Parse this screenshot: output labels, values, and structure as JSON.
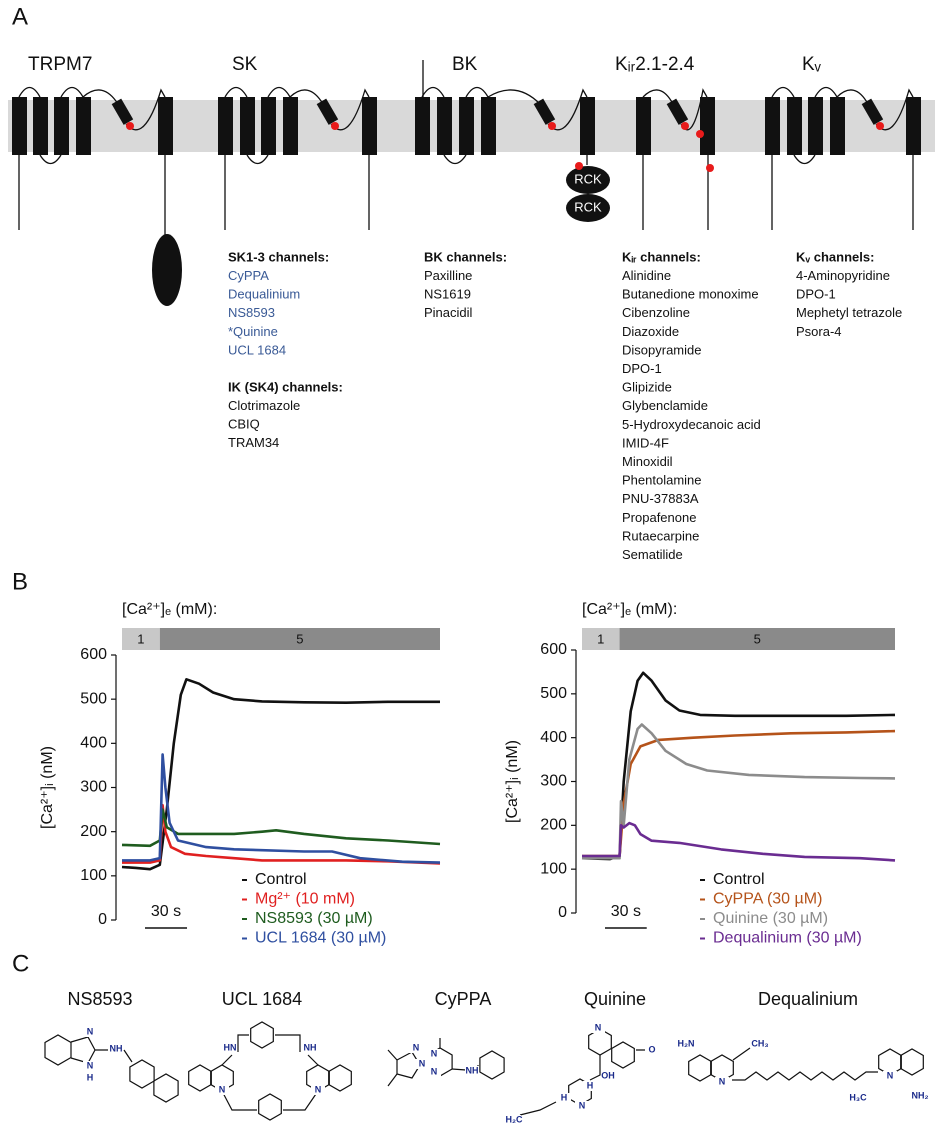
{
  "panel_labels": [
    "A",
    "B",
    "C"
  ],
  "panel_a": {
    "channels": [
      {
        "name": "TRPM7"
      },
      {
        "name": "SK"
      },
      {
        "name": "BK"
      },
      {
        "name": "Kᵢᵣ2.1-2.4"
      },
      {
        "name": "Kᵥ"
      }
    ],
    "domain_labels": [
      "RCK",
      "RCK"
    ],
    "groups": [
      {
        "heading": "SK1-3 channels:",
        "items": [
          "CyPPA",
          "Dequalinium",
          "NS8593",
          "*Quinine",
          "UCL 1684"
        ],
        "color": "#3a5a96"
      },
      {
        "heading": "IK (SK4) channels:",
        "items": [
          "Clotrimazole",
          "CBIQ",
          "TRAM34"
        ]
      },
      {
        "heading": "BK channels:",
        "items": [
          "Paxilline",
          "NS1619",
          "Pinacidil"
        ]
      },
      {
        "heading": "Kᵢᵣ channels:",
        "items": [
          "Alinidine",
          "Butanedione monoxime",
          "Cibenzoline",
          "Diazoxide",
          "Disopyramide",
          "DPO-1",
          "Glipizide",
          "Glybenclamide",
          "5-Hydroxydecanoic acid",
          "IMID-4F",
          "Minoxidil",
          "Phentolamine",
          "PNU-37883A",
          "Propafenone",
          "Rutaecarpine",
          "Sematilide"
        ]
      },
      {
        "heading": "Kᵥ channels:",
        "items": [
          "4-Aminopyridine",
          "DPO-1",
          "Mephetyl tetrazole",
          "Psora-4"
        ]
      }
    ]
  },
  "chart_data": [
    {
      "type": "line",
      "y_label": "[Ca²⁺]ᵢ (nM)",
      "condition_label": "[Ca²⁺]ₑ (mM):",
      "conditions": [
        {
          "value": 1,
          "start": 0,
          "end": 27
        },
        {
          "value": 5,
          "start": 27,
          "end": 227
        }
      ],
      "scale_bar": {
        "value": 30,
        "label": "30 s"
      },
      "xlim": [
        0,
        227
      ],
      "ylim": [
        0,
        600
      ],
      "yticks": [
        0,
        100,
        200,
        300,
        400,
        500,
        600
      ],
      "series": [
        {
          "name": "Control",
          "color": "#111111",
          "x": [
            0,
            10,
            20,
            27,
            32,
            37,
            42,
            46,
            55,
            65,
            80,
            100,
            130,
            160,
            190,
            220,
            227
          ],
          "values": [
            120,
            118,
            115,
            125,
            250,
            400,
            510,
            545,
            535,
            515,
            500,
            495,
            493,
            492,
            494,
            494,
            494
          ]
        },
        {
          "name": "Mg²⁺ (10 mM)",
          "color": "#e02020",
          "x": [
            0,
            20,
            27,
            29,
            31,
            35,
            45,
            60,
            80,
            100,
            130,
            160,
            190,
            227
          ],
          "values": [
            130,
            130,
            135,
            260,
            200,
            165,
            150,
            145,
            140,
            135,
            135,
            135,
            133,
            128
          ]
        },
        {
          "name": "NS8593 (30 µM)",
          "color": "#1f5c1f",
          "x": [
            0,
            20,
            27,
            29,
            32,
            40,
            60,
            80,
            100,
            110,
            130,
            160,
            190,
            227
          ],
          "values": [
            170,
            168,
            180,
            250,
            210,
            195,
            195,
            195,
            200,
            203,
            195,
            185,
            180,
            172
          ]
        },
        {
          "name": "UCL 1684 (30 µM)",
          "color": "#2f4fa0",
          "x": [
            0,
            20,
            27,
            29,
            31,
            34,
            40,
            60,
            80,
            100,
            130,
            150,
            170,
            200,
            227
          ],
          "values": [
            135,
            135,
            140,
            375,
            300,
            220,
            180,
            165,
            160,
            158,
            155,
            155,
            140,
            132,
            130
          ]
        }
      ]
    },
    {
      "type": "line",
      "y_label": "[Ca²⁺]ᵢ (nM)",
      "condition_label": "[Ca²⁺]ₑ (mM):",
      "conditions": [
        {
          "value": 1,
          "start": 0,
          "end": 27
        },
        {
          "value": 5,
          "start": 27,
          "end": 225
        }
      ],
      "scale_bar": {
        "value": 30,
        "label": "30 s"
      },
      "xlim": [
        0,
        225
      ],
      "ylim": [
        0,
        600
      ],
      "yticks": [
        0,
        100,
        200,
        300,
        400,
        500,
        600
      ],
      "series": [
        {
          "name": "Control",
          "color": "#111111",
          "x": [
            0,
            20,
            27,
            30,
            35,
            40,
            44,
            50,
            60,
            70,
            85,
            110,
            150,
            190,
            225
          ],
          "values": [
            125,
            123,
            130,
            300,
            460,
            530,
            548,
            530,
            485,
            462,
            452,
            450,
            450,
            450,
            452
          ]
        },
        {
          "name": "CyPPA (30 µM)",
          "color": "#b5531a",
          "x": [
            0,
            27,
            30,
            35,
            42,
            55,
            80,
            110,
            150,
            190,
            225
          ],
          "values": [
            130,
            130,
            250,
            340,
            380,
            395,
            400,
            405,
            410,
            412,
            415
          ]
        },
        {
          "name": "Quinine (30 µM)",
          "color": "#8c8c8c",
          "x": [
            0,
            27,
            28,
            30,
            34,
            40,
            43,
            50,
            60,
            75,
            90,
            120,
            160,
            200,
            225
          ],
          "values": [
            125,
            125,
            255,
            200,
            350,
            420,
            430,
            410,
            370,
            340,
            325,
            315,
            310,
            308,
            307
          ]
        },
        {
          "name": "Dequalinium (30 µM)",
          "color": "#6a2c91",
          "x": [
            0,
            27,
            28,
            30,
            34,
            38,
            42,
            50,
            70,
            100,
            130,
            160,
            200,
            225
          ],
          "values": [
            130,
            130,
            200,
            195,
            205,
            200,
            180,
            165,
            160,
            145,
            135,
            128,
            125,
            120
          ]
        }
      ]
    }
  ],
  "panel_c": {
    "compounds": [
      {
        "name": "NS8593",
        "atoms": [
          "N",
          "N",
          "H",
          "NH"
        ]
      },
      {
        "name": "UCL 1684",
        "atoms": [
          "HN",
          "NH",
          "N",
          "N"
        ]
      },
      {
        "name": "CyPPA",
        "atoms": [
          "N",
          "N",
          "N",
          "N",
          "NH"
        ]
      },
      {
        "name": "Quinine",
        "atoms": [
          "N",
          "O",
          "OH",
          "H",
          "H",
          "N",
          "H₂C"
        ]
      },
      {
        "name": "Dequalinium",
        "atoms": [
          "H₂N",
          "CH₃",
          "N",
          "N",
          "H₃C",
          "NH₂"
        ]
      }
    ]
  }
}
